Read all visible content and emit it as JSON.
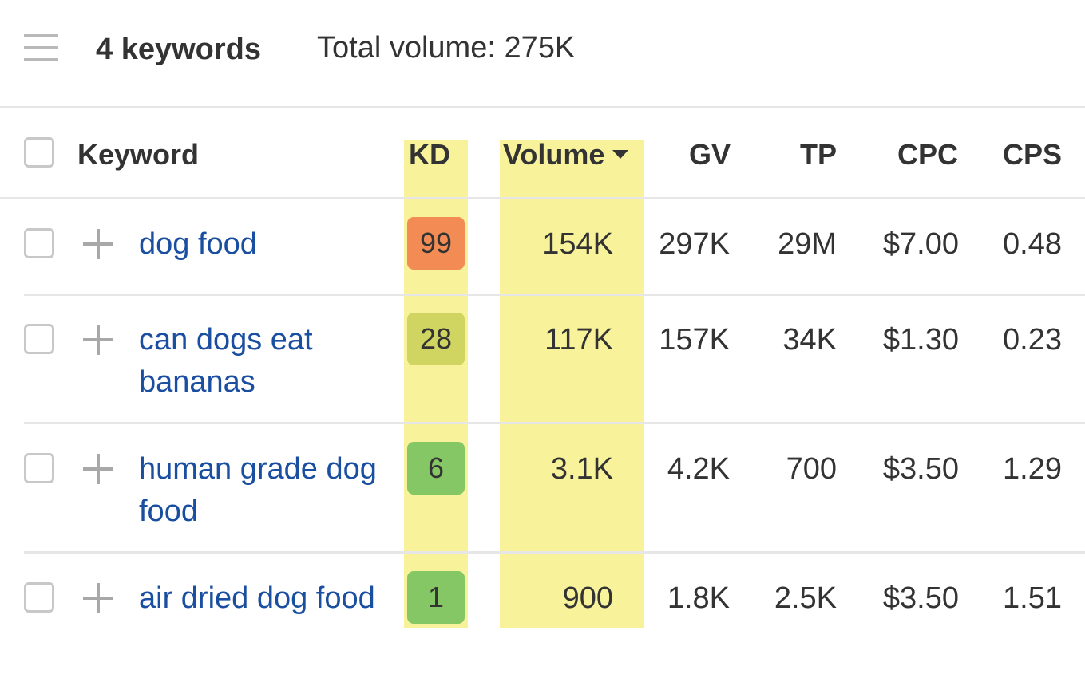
{
  "header": {
    "menu_icon": "hamburger-menu-icon",
    "keyword_count": "4 keywords",
    "total_volume": "Total volume: 275K"
  },
  "table": {
    "columns": {
      "keyword": "Keyword",
      "kd": "KD",
      "volume": "Volume",
      "gv": "GV",
      "tp": "TP",
      "cpc": "CPC",
      "cps": "CPS"
    },
    "sort": {
      "column": "Volume",
      "direction": "descending"
    },
    "rows": [
      {
        "keyword": "dog food",
        "kd": "99",
        "kd_color": "#f28c54",
        "volume": "154K",
        "gv": "297K",
        "tp": "29M",
        "cpc": "$7.00",
        "cps": "0.48"
      },
      {
        "keyword": "can dogs eat bananas",
        "kd": "28",
        "kd_color": "#cfd560",
        "volume": "117K",
        "gv": "157K",
        "tp": "34K",
        "cpc": "$1.30",
        "cps": "0.23"
      },
      {
        "keyword": "human grade dog food",
        "kd": "6",
        "kd_color": "#86c765",
        "volume": "3.1K",
        "gv": "4.2K",
        "tp": "700",
        "cpc": "$3.50",
        "cps": "1.29"
      },
      {
        "keyword": "air dried dog food",
        "kd": "1",
        "kd_color": "#86c765",
        "volume": "900",
        "gv": "1.8K",
        "tp": "2.5K",
        "cpc": "$3.50",
        "cps": "1.51"
      }
    ]
  },
  "colors": {
    "highlight": "#f8f39b",
    "link": "#1a4ea0",
    "text": "#333333",
    "divider": "#e6e6e6"
  }
}
